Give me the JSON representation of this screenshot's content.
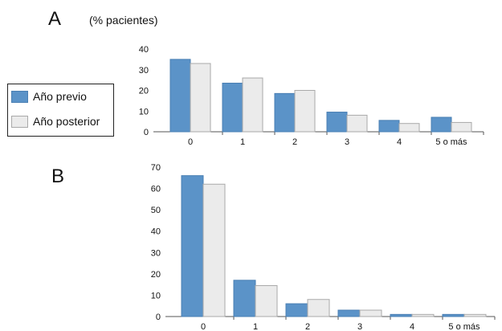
{
  "panels": [
    {
      "letter": "A",
      "unit_label": "(% pacientes)"
    },
    {
      "letter": "B",
      "unit_label": ""
    }
  ],
  "legend": {
    "items": [
      {
        "label": "Año previo",
        "color": "#5b93c8",
        "border": "#4a7fb3"
      },
      {
        "label": "Año posterior",
        "color": "#ebebeb",
        "border": "#a9a9a9"
      }
    ]
  },
  "chart_data": [
    {
      "type": "bar",
      "title": "A",
      "ylabel": "(% pacientes)",
      "categories": [
        "0",
        "1",
        "2",
        "3",
        "4",
        "5 o más"
      ],
      "series": [
        {
          "name": "Año previo",
          "values": [
            35,
            23.5,
            18.5,
            9.5,
            5.5,
            7
          ]
        },
        {
          "name": "Año posterior",
          "values": [
            33,
            26,
            20,
            8,
            4,
            4.5
          ]
        }
      ],
      "ylim": [
        0,
        40
      ],
      "yticks": [
        0,
        10,
        20,
        30,
        40
      ],
      "grid": false,
      "legend_position": "left"
    },
    {
      "type": "bar",
      "title": "B",
      "categories": [
        "0",
        "1",
        "2",
        "3",
        "4",
        "5 o más"
      ],
      "series": [
        {
          "name": "Año previo",
          "values": [
            66,
            17,
            6,
            3,
            1,
            1
          ]
        },
        {
          "name": "Año posterior",
          "values": [
            62,
            14.5,
            8,
            3,
            1,
            1
          ]
        }
      ],
      "ylim": [
        0,
        70
      ],
      "yticks": [
        0,
        10,
        20,
        30,
        40,
        50,
        60,
        70
      ],
      "grid": false,
      "legend_position": "left"
    }
  ]
}
